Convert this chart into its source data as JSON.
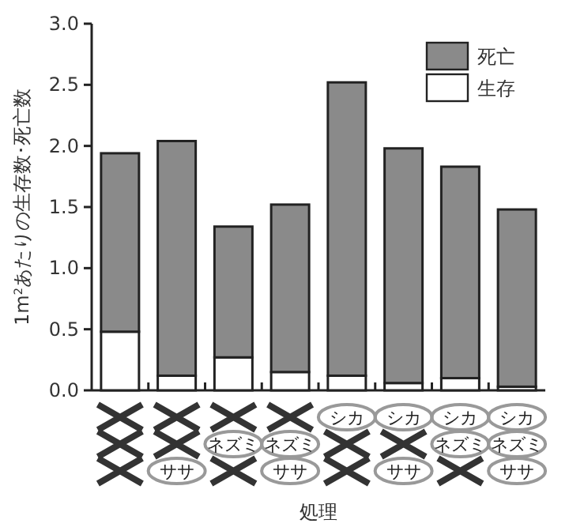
{
  "chart_data": [
    {
      "type": "bar",
      "stacked": true,
      "ylabel": "1m$^{2}$あたりの生存数･死亡数",
      "categories": [
        null,
        null,
        null,
        null,
        null,
        null,
        null,
        null
      ],
      "series": [
        {
          "name": "生存",
          "color": "#ffffff",
          "values": [
            0.48,
            0.12,
            0.27,
            0.15,
            0.12,
            0.06,
            0.1,
            0.03
          ]
        },
        {
          "name": "死亡",
          "color": "#8a8a8a",
          "values": [
            1.46,
            1.92,
            1.07,
            1.37,
            2.4,
            1.92,
            1.73,
            1.45
          ]
        }
      ],
      "ylim": [
        0,
        3
      ],
      "yticks": [
        {
          "value": 0,
          "label": "0.0"
        },
        0.5,
        {
          "value": 1,
          "label": "1.0"
        },
        1.5,
        {
          "value": 2,
          "label": "2.0"
        },
        2.5,
        {
          "value": 3,
          "label": "3.0"
        }
      ],
      "legend": "top right"
    },
    {
      "type": "other",
      "xlabel": "処理",
      "categories": [
        null,
        null,
        null,
        null,
        null,
        null,
        null,
        null
      ],
      "y_categories": [
        null,
        null,
        null
      ],
      "cell_labels": [
        [
          null,
          null,
          null,
          null,
          "シカ",
          "シカ",
          "シカ",
          "シカ"
        ],
        [
          null,
          null,
          "ネズミ",
          "ネズミ",
          null,
          null,
          "ネズミ",
          "ネズミ"
        ],
        [
          null,
          "ササ",
          null,
          "ササ",
          null,
          "ササ",
          null,
          "ササ"
        ]
      ]
    }
  ]
}
